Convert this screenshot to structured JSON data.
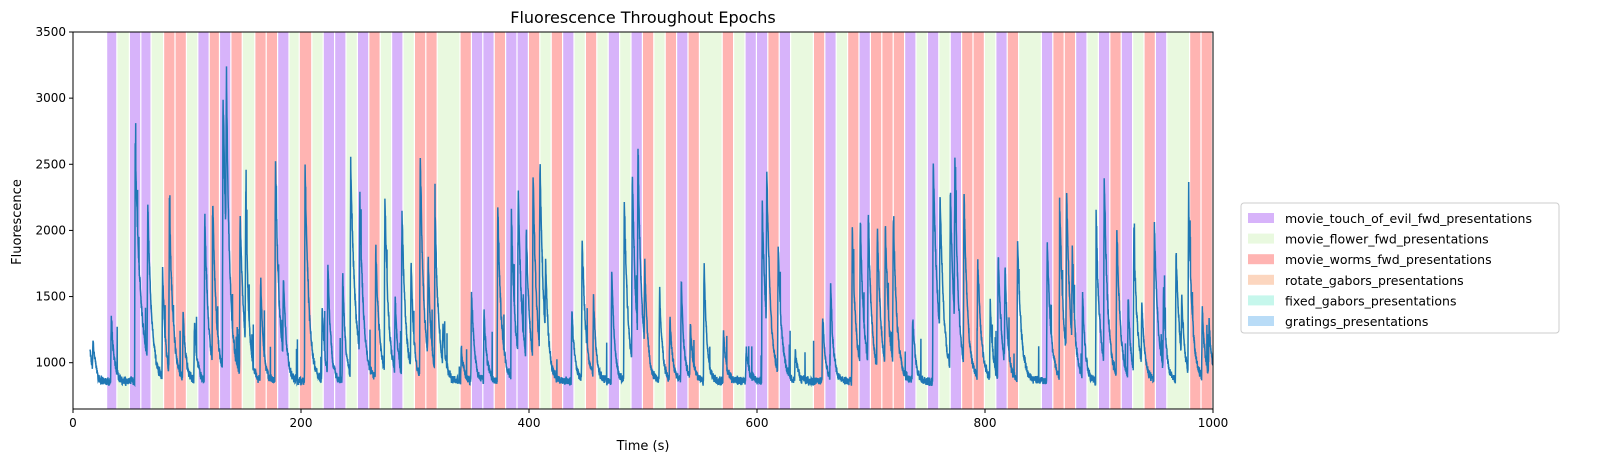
{
  "chart_data": {
    "type": "line",
    "title": "Fluorescence Throughout Epochs",
    "xlabel": "Time (s)",
    "ylabel": "Fluorescence",
    "xlim": [
      0,
      1000
    ],
    "ylim": [
      650,
      3500
    ],
    "xticks": [
      0,
      200,
      400,
      600,
      800,
      1000
    ],
    "yticks": [
      1000,
      1500,
      2000,
      2500,
      3000,
      3500
    ],
    "grid": false,
    "legend_position": "right",
    "line_color": "#1f77b4",
    "legend": [
      {
        "key": "touch",
        "label": "movie_touch_of_evil_fwd_presentations",
        "color": "#d7b3fa"
      },
      {
        "key": "flower",
        "label": "movie_flower_fwd_presentations",
        "color": "#e9f9df"
      },
      {
        "key": "worms",
        "label": "movie_worms_fwd_presentations",
        "color": "#ffb4b2"
      },
      {
        "key": "rotate",
        "label": "rotate_gabors_presentations",
        "color": "#fcd6bf"
      },
      {
        "key": "fixed",
        "label": "fixed_gabors_presentations",
        "color": "#c6f7ec"
      },
      {
        "key": "gratings",
        "label": "gratings_presentations",
        "color": "#b9dcf7"
      }
    ],
    "epochs": [
      {
        "start": 30,
        "end": 39,
        "type": "touch"
      },
      {
        "start": 39,
        "end": 50,
        "type": "flower"
      },
      {
        "start": 50,
        "end": 60,
        "type": "touch"
      },
      {
        "start": 60,
        "end": 69,
        "type": "touch"
      },
      {
        "start": 69,
        "end": 80,
        "type": "flower"
      },
      {
        "start": 80,
        "end": 90,
        "type": "worms"
      },
      {
        "start": 90,
        "end": 100,
        "type": "worms"
      },
      {
        "start": 100,
        "end": 110,
        "type": "flower"
      },
      {
        "start": 110,
        "end": 120,
        "type": "touch"
      },
      {
        "start": 120,
        "end": 129,
        "type": "worms"
      },
      {
        "start": 129,
        "end": 139,
        "type": "touch"
      },
      {
        "start": 139,
        "end": 149,
        "type": "worms"
      },
      {
        "start": 149,
        "end": 160,
        "type": "flower"
      },
      {
        "start": 160,
        "end": 170,
        "type": "worms"
      },
      {
        "start": 170,
        "end": 180,
        "type": "worms"
      },
      {
        "start": 180,
        "end": 190,
        "type": "touch"
      },
      {
        "start": 190,
        "end": 199,
        "type": "flower"
      },
      {
        "start": 199,
        "end": 210,
        "type": "worms"
      },
      {
        "start": 210,
        "end": 220,
        "type": "flower"
      },
      {
        "start": 220,
        "end": 230,
        "type": "touch"
      },
      {
        "start": 230,
        "end": 240,
        "type": "touch"
      },
      {
        "start": 240,
        "end": 250,
        "type": "flower"
      },
      {
        "start": 250,
        "end": 260,
        "type": "touch"
      },
      {
        "start": 260,
        "end": 270,
        "type": "worms"
      },
      {
        "start": 270,
        "end": 280,
        "type": "flower"
      },
      {
        "start": 280,
        "end": 290,
        "type": "touch"
      },
      {
        "start": 290,
        "end": 300,
        "type": "flower"
      },
      {
        "start": 300,
        "end": 310,
        "type": "worms"
      },
      {
        "start": 310,
        "end": 320,
        "type": "worms"
      },
      {
        "start": 320,
        "end": 340,
        "type": "flower"
      },
      {
        "start": 340,
        "end": 350,
        "type": "worms"
      },
      {
        "start": 350,
        "end": 360,
        "type": "touch"
      },
      {
        "start": 360,
        "end": 370,
        "type": "touch"
      },
      {
        "start": 370,
        "end": 380,
        "type": "worms"
      },
      {
        "start": 380,
        "end": 390,
        "type": "touch"
      },
      {
        "start": 390,
        "end": 400,
        "type": "touch"
      },
      {
        "start": 400,
        "end": 410,
        "type": "worms"
      },
      {
        "start": 410,
        "end": 420,
        "type": "flower"
      },
      {
        "start": 420,
        "end": 430,
        "type": "worms"
      },
      {
        "start": 430,
        "end": 440,
        "type": "touch"
      },
      {
        "start": 440,
        "end": 450,
        "type": "flower"
      },
      {
        "start": 450,
        "end": 460,
        "type": "worms"
      },
      {
        "start": 460,
        "end": 470,
        "type": "flower"
      },
      {
        "start": 470,
        "end": 480,
        "type": "touch"
      },
      {
        "start": 480,
        "end": 490,
        "type": "flower"
      },
      {
        "start": 490,
        "end": 500,
        "type": "touch"
      },
      {
        "start": 500,
        "end": 510,
        "type": "worms"
      },
      {
        "start": 510,
        "end": 520,
        "type": "flower"
      },
      {
        "start": 520,
        "end": 530,
        "type": "worms"
      },
      {
        "start": 530,
        "end": 540,
        "type": "touch"
      },
      {
        "start": 540,
        "end": 550,
        "type": "worms"
      },
      {
        "start": 550,
        "end": 570,
        "type": "flower"
      },
      {
        "start": 570,
        "end": 580,
        "type": "worms"
      },
      {
        "start": 580,
        "end": 590,
        "type": "flower"
      },
      {
        "start": 590,
        "end": 600,
        "type": "touch"
      },
      {
        "start": 600,
        "end": 610,
        "type": "touch"
      },
      {
        "start": 610,
        "end": 620,
        "type": "worms"
      },
      {
        "start": 620,
        "end": 630,
        "type": "touch"
      },
      {
        "start": 630,
        "end": 650,
        "type": "flower"
      },
      {
        "start": 650,
        "end": 660,
        "type": "worms"
      },
      {
        "start": 660,
        "end": 670,
        "type": "touch"
      },
      {
        "start": 670,
        "end": 680,
        "type": "flower"
      },
      {
        "start": 680,
        "end": 690,
        "type": "worms"
      },
      {
        "start": 690,
        "end": 700,
        "type": "touch"
      },
      {
        "start": 700,
        "end": 710,
        "type": "worms"
      },
      {
        "start": 710,
        "end": 720,
        "type": "worms"
      },
      {
        "start": 720,
        "end": 730,
        "type": "worms"
      },
      {
        "start": 730,
        "end": 740,
        "type": "touch"
      },
      {
        "start": 740,
        "end": 750,
        "type": "flower"
      },
      {
        "start": 750,
        "end": 760,
        "type": "touch"
      },
      {
        "start": 760,
        "end": 770,
        "type": "flower"
      },
      {
        "start": 770,
        "end": 780,
        "type": "touch"
      },
      {
        "start": 780,
        "end": 790,
        "type": "worms"
      },
      {
        "start": 790,
        "end": 800,
        "type": "worms"
      },
      {
        "start": 800,
        "end": 810,
        "type": "flower"
      },
      {
        "start": 810,
        "end": 820,
        "type": "touch"
      },
      {
        "start": 820,
        "end": 830,
        "type": "worms"
      },
      {
        "start": 830,
        "end": 850,
        "type": "flower"
      },
      {
        "start": 850,
        "end": 860,
        "type": "touch"
      },
      {
        "start": 860,
        "end": 870,
        "type": "worms"
      },
      {
        "start": 870,
        "end": 880,
        "type": "worms"
      },
      {
        "start": 880,
        "end": 890,
        "type": "touch"
      },
      {
        "start": 890,
        "end": 900,
        "type": "flower"
      },
      {
        "start": 900,
        "end": 910,
        "type": "touch"
      },
      {
        "start": 910,
        "end": 920,
        "type": "worms"
      },
      {
        "start": 920,
        "end": 930,
        "type": "touch"
      },
      {
        "start": 930,
        "end": 940,
        "type": "flower"
      },
      {
        "start": 940,
        "end": 950,
        "type": "worms"
      },
      {
        "start": 950,
        "end": 960,
        "type": "touch"
      },
      {
        "start": 960,
        "end": 980,
        "type": "flower"
      },
      {
        "start": 980,
        "end": 990,
        "type": "worms"
      },
      {
        "start": 990,
        "end": 1000,
        "type": "worms"
      }
    ],
    "trace": {
      "start": 15,
      "end": 1000,
      "baseline": 860,
      "noise": 55,
      "peaks": [
        [
          17,
          1180,
          3
        ],
        [
          33,
          1550,
          3
        ],
        [
          54,
          2950,
          6
        ],
        [
          65,
          2350,
          4
        ],
        [
          78,
          1950,
          3
        ],
        [
          84,
          2450,
          4
        ],
        [
          96,
          1500,
          3
        ],
        [
          106,
          1450,
          3
        ],
        [
          115,
          2450,
          4
        ],
        [
          122,
          2400,
          4
        ],
        [
          131,
          3400,
          5
        ],
        [
          134,
          2600,
          3
        ],
        [
          146,
          2450,
          4
        ],
        [
          151,
          2400,
          3
        ],
        [
          164,
          1900,
          3
        ],
        [
          177,
          3000,
          4
        ],
        [
          184,
          1700,
          3
        ],
        [
          203,
          2950,
          4
        ],
        [
          218,
          1600,
          3
        ],
        [
          223,
          2000,
          3
        ],
        [
          236,
          1950,
          3
        ],
        [
          243,
          2800,
          5
        ],
        [
          251,
          2350,
          4
        ],
        [
          265,
          2100,
          4
        ],
        [
          273,
          2500,
          4
        ],
        [
          282,
          1600,
          3
        ],
        [
          288,
          2400,
          4
        ],
        [
          296,
          1950,
          3
        ],
        [
          304,
          2950,
          4
        ],
        [
          311,
          1900,
          3
        ],
        [
          317,
          2350,
          4
        ],
        [
          324,
          1250,
          3
        ],
        [
          340,
          1200,
          3
        ],
        [
          349,
          1800,
          3
        ],
        [
          360,
          1550,
          3
        ],
        [
          372,
          2500,
          4
        ],
        [
          384,
          2400,
          4
        ],
        [
          390,
          2450,
          4
        ],
        [
          397,
          2100,
          4
        ],
        [
          403,
          2600,
          4
        ],
        [
          409,
          2700,
          4
        ],
        [
          414,
          1600,
          3
        ],
        [
          437,
          1600,
          3
        ],
        [
          446,
          2200,
          4
        ],
        [
          456,
          1650,
          3
        ],
        [
          472,
          2000,
          3
        ],
        [
          483,
          2600,
          4
        ],
        [
          490,
          2700,
          4
        ],
        [
          495,
          2650,
          4
        ],
        [
          501,
          1700,
          3
        ],
        [
          514,
          1800,
          3
        ],
        [
          523,
          1500,
          3
        ],
        [
          533,
          1850,
          3
        ],
        [
          541,
          1400,
          3
        ],
        [
          553,
          2050,
          3
        ],
        [
          570,
          1350,
          3
        ],
        [
          590,
          1200,
          3
        ],
        [
          604,
          2600,
          4
        ],
        [
          608,
          2400,
          4
        ],
        [
          618,
          2050,
          4
        ],
        [
          633,
          1150,
          3
        ],
        [
          657,
          1550,
          3
        ],
        [
          664,
          1800,
          3
        ],
        [
          683,
          2300,
          4
        ],
        [
          690,
          2250,
          4
        ],
        [
          697,
          2250,
          4
        ],
        [
          705,
          2200,
          4
        ],
        [
          712,
          2200,
          4
        ],
        [
          719,
          2300,
          4
        ],
        [
          736,
          1500,
          3
        ],
        [
          754,
          2850,
          5
        ],
        [
          760,
          2200,
          4
        ],
        [
          769,
          2600,
          4
        ],
        [
          773,
          2400,
          4
        ],
        [
          781,
          2450,
          4
        ],
        [
          793,
          2000,
          4
        ],
        [
          804,
          1600,
          3
        ],
        [
          811,
          2000,
          4
        ],
        [
          817,
          1850,
          3
        ],
        [
          828,
          2200,
          4
        ],
        [
          854,
          2200,
          4
        ],
        [
          865,
          2550,
          4
        ],
        [
          871,
          2400,
          4
        ],
        [
          876,
          1800,
          3
        ],
        [
          885,
          1700,
          3
        ],
        [
          897,
          2350,
          4
        ],
        [
          904,
          2650,
          4
        ],
        [
          915,
          2250,
          4
        ],
        [
          925,
          1650,
          3
        ],
        [
          930,
          2200,
          4
        ],
        [
          937,
          1500,
          3
        ],
        [
          948,
          2350,
          4
        ],
        [
          956,
          1650,
          3
        ],
        [
          967,
          2100,
          4
        ],
        [
          972,
          1450,
          3
        ],
        [
          978,
          2500,
          4
        ],
        [
          990,
          1550,
          3
        ],
        [
          996,
          1400,
          3
        ]
      ]
    }
  }
}
